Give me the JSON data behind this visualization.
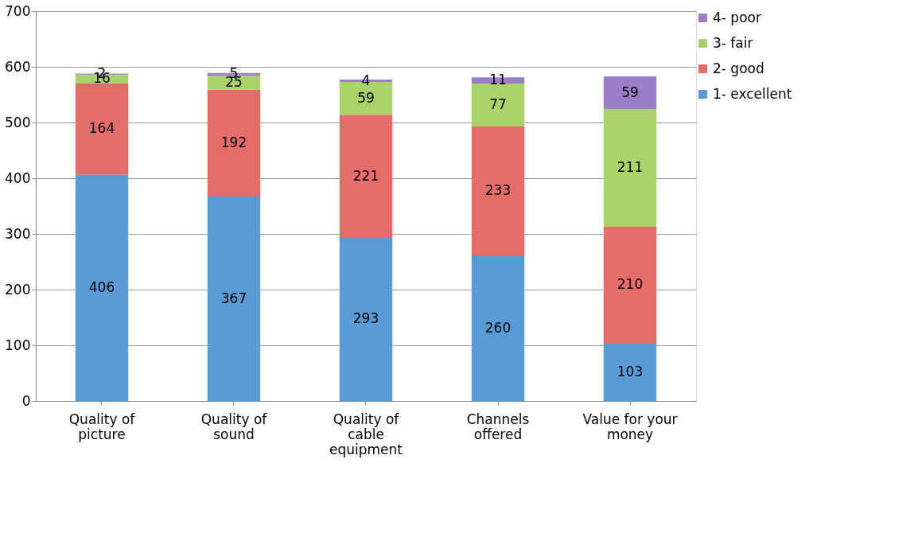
{
  "chart_data": {
    "type": "bar",
    "stacked": true,
    "categories": [
      "Quality of picture",
      "Quality of sound",
      "Quality of cable equipment",
      "Channels offered",
      "Value for your money"
    ],
    "series": [
      {
        "name": "1- excellent",
        "color": "#5b9bd5",
        "values": [
          406,
          367,
          293,
          260,
          103
        ]
      },
      {
        "name": "2- good",
        "color": "#e46c6a",
        "values": [
          164,
          192,
          221,
          233,
          210
        ]
      },
      {
        "name": "3- fair",
        "color": "#a9d26a",
        "values": [
          16,
          25,
          59,
          77,
          211
        ]
      },
      {
        "name": "4- poor",
        "color": "#9a7fc8",
        "values": [
          2,
          5,
          4,
          11,
          59
        ]
      }
    ],
    "ylim": [
      0,
      700
    ],
    "yticks": [
      0,
      100,
      200,
      300,
      400,
      500,
      600,
      700
    ],
    "grid": "y",
    "legend": "right",
    "data_labels": true
  }
}
